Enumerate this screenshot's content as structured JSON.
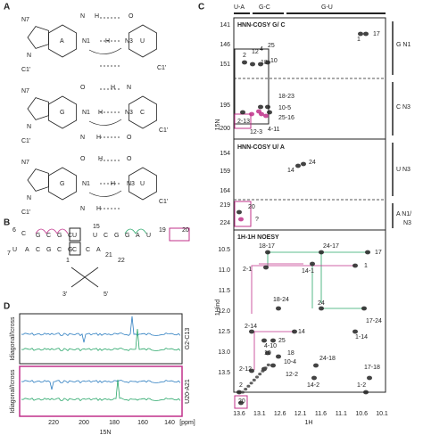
{
  "panel_a": {
    "label": "A",
    "structures": [
      {
        "bases": [
          "A",
          "U"
        ],
        "atoms": [
          "N7",
          "N",
          "H",
          "N1",
          "H",
          "N3",
          "O",
          "N",
          "C1'",
          "C1'"
        ]
      },
      {
        "bases": [
          "G",
          "C"
        ],
        "atoms": [
          "N7",
          "O",
          "H",
          "N",
          "N1",
          "H",
          "N3",
          "N",
          "H",
          "O",
          "N",
          "C1'",
          "C1'"
        ]
      },
      {
        "bases": [
          "G",
          "U"
        ],
        "atoms": [
          "N7",
          "O",
          "H",
          "N3",
          "N1",
          "H",
          "O",
          "N",
          "H",
          "N",
          "C1'",
          "C1'"
        ]
      }
    ]
  },
  "panel_b": {
    "label": "B",
    "top": [
      "G",
      "C",
      "G",
      "C",
      "U",
      "U",
      "C",
      "G",
      "G",
      "A",
      "U"
    ],
    "bottom": [
      "U",
      "A",
      "C",
      "G",
      "C",
      "G",
      "C",
      "C",
      "A"
    ],
    "loop": [
      "C"
    ],
    "numbers": [
      "6",
      "7",
      "15",
      "19",
      "20",
      "1",
      "21",
      "22",
      "3'",
      "5'"
    ]
  },
  "panel_c": {
    "label": "C",
    "header": [
      "U-A",
      "G-C",
      "G-U"
    ],
    "y_label_15n": "15N",
    "y_label_1h": "1Hind",
    "x_label": "1H",
    "section_1": {
      "title": "HNN-COSY G/ C",
      "yticks": [
        "141",
        "146",
        "151",
        "195",
        "200"
      ],
      "side_labels": [
        "G N1",
        "C N3"
      ],
      "peak_labels": [
        "2",
        "12",
        "4",
        "25",
        "18",
        "10",
        "1",
        "17",
        "2-13",
        "12-3",
        "4-11",
        "18-23",
        "10-5",
        "25-16"
      ]
    },
    "section_2": {
      "title": "HNN-COSY U/ A",
      "yticks": [
        "154",
        "159",
        "164",
        "219",
        "224"
      ],
      "side_labels": [
        "U N3",
        "A N1/",
        "N3"
      ],
      "peak_labels": [
        "14",
        "24",
        "20",
        "?"
      ]
    },
    "section_3": {
      "title": "1H-1H NOESY",
      "yticks": [
        "10.5",
        "11.0",
        "11.5",
        "12.0",
        "12.5",
        "13.0",
        "13.5"
      ],
      "xticks": [
        "13.6",
        "13.1",
        "12.6",
        "12.1",
        "11.6",
        "11.1",
        "10.6",
        "10.1"
      ],
      "peak_labels": [
        "18-17",
        "24-17",
        "17",
        "2-1",
        "14-1",
        "1",
        "18-24",
        "24",
        "17-24",
        "2-14",
        "14",
        "1-14",
        "4-10",
        "25",
        "10",
        "18",
        "10-4",
        "24-18",
        "2-12",
        "12-2",
        "14-2",
        "17-18",
        "1-2",
        "2",
        "20"
      ]
    }
  },
  "panel_d": {
    "label": "D",
    "xticks": [
      "220",
      "200",
      "180",
      "160",
      "140",
      "[ppm]"
    ],
    "x_label": "15N",
    "side_labels": [
      "G2-C13",
      "U20-A21"
    ],
    "y_labels": [
      "Idiagonal/Icross",
      "Idiagonal/Icross"
    ]
  }
}
